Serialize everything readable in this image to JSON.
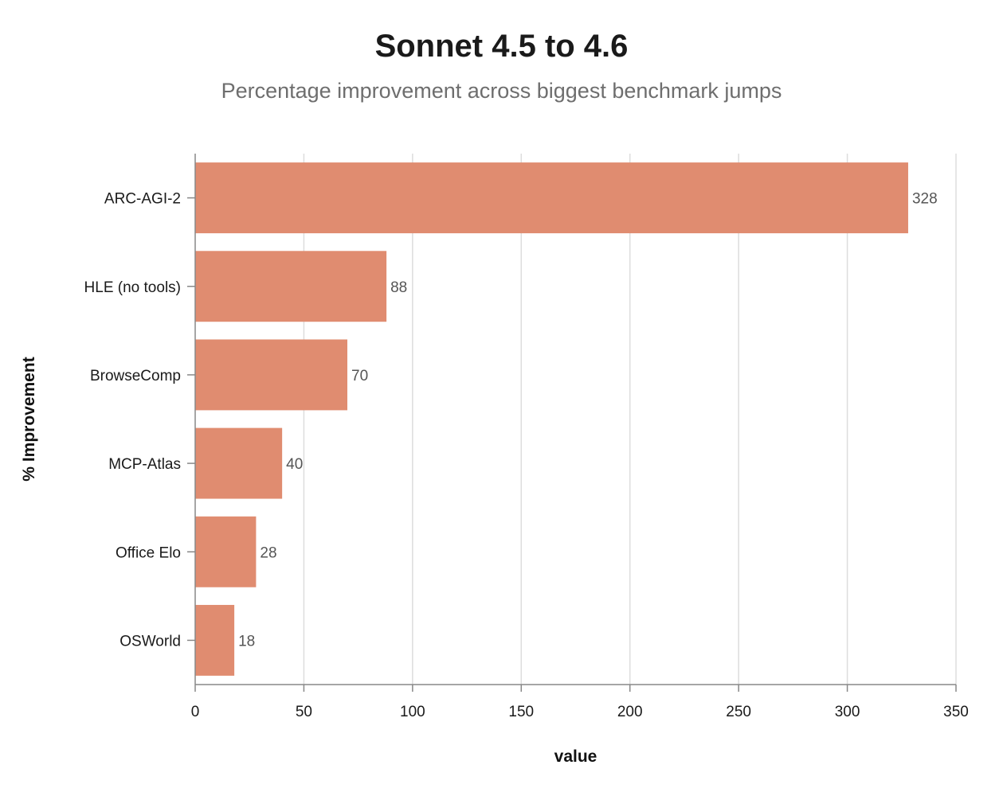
{
  "title": "Sonnet 4.5 to 4.6",
  "subtitle": "Percentage improvement across biggest benchmark jumps",
  "colors": {
    "bar": "#e08c70",
    "grid": "#dddddd",
    "axis": "#888888"
  },
  "chart_data": {
    "type": "bar",
    "orientation": "horizontal",
    "title": "Sonnet 4.5 to 4.6",
    "subtitle": "Percentage improvement across biggest benchmark jumps",
    "categories": [
      "ARC-AGI-2",
      "HLE (no tools)",
      "BrowseComp",
      "MCP-Atlas",
      "Office Elo",
      "OSWorld"
    ],
    "values": [
      328,
      88,
      70,
      40,
      28,
      18
    ],
    "xlabel": "value",
    "ylabel": "% Improvement",
    "xlim": [
      0,
      350
    ],
    "xticks": [
      0,
      50,
      100,
      150,
      200,
      250,
      300,
      350
    ],
    "grid": true,
    "data_labels": true
  }
}
